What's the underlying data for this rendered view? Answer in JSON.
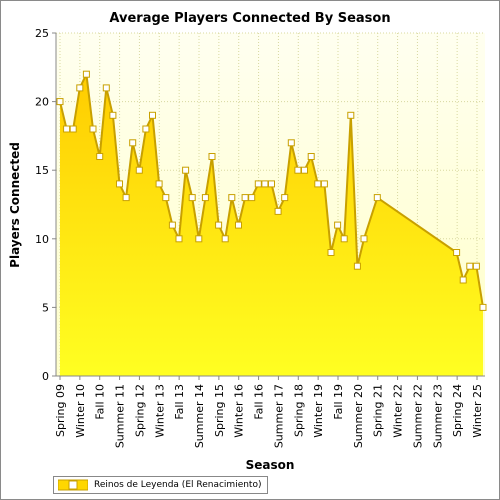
{
  "chart_data": {
    "type": "area",
    "title": "Average Players Connected By Season",
    "xlabel": "Season",
    "ylabel": "Players Connected",
    "ylim": [
      0,
      25
    ],
    "yticks": [
      0,
      5,
      10,
      15,
      20,
      25
    ],
    "grid": true,
    "legend_position": "bottom-left",
    "colors": {
      "fill_top": "#ffd700",
      "fill_bottom": "#ffff33",
      "line": "#c8a000",
      "plot_bg_top": "#fffff0",
      "plot_bg_bottom": "#ffffc8"
    },
    "x_tick_labels": [
      "Spring 09",
      "Winter 10",
      "Fall 10",
      "Summer 11",
      "Spring 12",
      "Winter 13",
      "Fall 13",
      "Summer 14",
      "Spring 15",
      "Winter 16",
      "Fall 16",
      "Summer 17",
      "Spring 18",
      "Winter 19",
      "Fall 19",
      "Summer 20",
      "Spring 21",
      "Winter 22",
      "Summer 22",
      "Summer 23",
      "Spring 24",
      "Winter 25"
    ],
    "series": [
      {
        "name": "Reinos de Leyenda (El Renacimiento)",
        "points": [
          [
            0,
            20
          ],
          [
            1,
            18
          ],
          [
            2,
            18
          ],
          [
            3,
            21
          ],
          [
            4,
            22
          ],
          [
            5,
            18
          ],
          [
            6,
            16
          ],
          [
            7,
            21
          ],
          [
            8,
            19
          ],
          [
            9,
            14
          ],
          [
            10,
            13
          ],
          [
            11,
            17
          ],
          [
            12,
            15
          ],
          [
            13,
            18
          ],
          [
            14,
            19
          ],
          [
            15,
            14
          ],
          [
            16,
            13
          ],
          [
            17,
            11
          ],
          [
            18,
            10
          ],
          [
            19,
            15
          ],
          [
            20,
            13
          ],
          [
            21,
            10
          ],
          [
            22,
            13
          ],
          [
            23,
            16
          ],
          [
            24,
            11
          ],
          [
            25,
            10
          ],
          [
            26,
            13
          ],
          [
            27,
            11
          ],
          [
            28,
            13
          ],
          [
            29,
            13
          ],
          [
            30,
            14
          ],
          [
            31,
            14
          ],
          [
            32,
            14
          ],
          [
            33,
            12
          ],
          [
            34,
            13
          ],
          [
            35,
            17
          ],
          [
            36,
            15
          ],
          [
            37,
            15
          ],
          [
            38,
            16
          ],
          [
            39,
            14
          ],
          [
            40,
            14
          ],
          [
            41,
            9
          ],
          [
            42,
            11
          ],
          [
            43,
            10
          ],
          [
            44,
            19
          ],
          [
            45,
            8
          ],
          [
            46,
            10
          ],
          [
            48,
            13
          ],
          [
            60,
            9
          ],
          [
            61,
            7
          ],
          [
            62,
            8
          ],
          [
            63,
            8
          ],
          [
            64,
            5
          ]
        ]
      }
    ]
  }
}
